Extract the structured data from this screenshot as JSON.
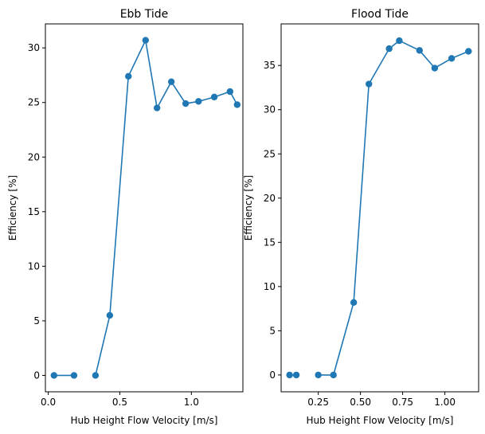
{
  "chart_data": [
    {
      "type": "line",
      "title": "Ebb Tide",
      "xlabel": "Hub Height Flow Velocity [m/s]",
      "ylabel": "Efficiency [%]",
      "xlim": [
        -0.02,
        1.36
      ],
      "ylim": [
        -1.5,
        32.2
      ],
      "xticks": [
        "0.0",
        "0.5",
        "1.0"
      ],
      "xtick_values": [
        0.0,
        0.5,
        1.0
      ],
      "yticks": [
        "0",
        "5",
        "10",
        "15",
        "20",
        "25",
        "30"
      ],
      "ytick_values": [
        0,
        5,
        10,
        15,
        20,
        25,
        30
      ],
      "color": "#1f77b4",
      "markers": true,
      "grid": false,
      "series": [
        {
          "x": [
            0.04,
            0.18,
            0.33,
            0.43,
            0.56,
            0.68,
            0.76,
            0.86,
            0.96,
            1.05,
            1.16,
            1.27,
            1.32
          ],
          "y": [
            0,
            0,
            0,
            5.5,
            27.4,
            30.7,
            24.5,
            26.9,
            24.9,
            25.1,
            25.5,
            26.0,
            24.8
          ],
          "segments": [
            [
              0,
              1
            ],
            [
              2,
              12
            ]
          ]
        }
      ]
    },
    {
      "type": "line",
      "title": "Flood Tide",
      "xlabel": "Hub Height Flow Velocity [m/s]",
      "ylabel": "Efficiency [%]",
      "xlim": [
        0.03,
        1.2
      ],
      "ylim": [
        -1.9,
        39.7
      ],
      "xticks": [
        "0.25",
        "0.50",
        "0.75",
        "1.00"
      ],
      "xtick_values": [
        0.25,
        0.5,
        0.75,
        1.0
      ],
      "yticks": [
        "0",
        "5",
        "10",
        "15",
        "20",
        "25",
        "30",
        "35"
      ],
      "ytick_values": [
        0,
        5,
        10,
        15,
        20,
        25,
        30,
        35
      ],
      "color": "#1f77b4",
      "markers": true,
      "grid": false,
      "series": [
        {
          "x": [
            0.08,
            0.12,
            0.25,
            0.34,
            0.46,
            0.55,
            0.67,
            0.73,
            0.85,
            0.94,
            1.04,
            1.14
          ],
          "y": [
            0,
            0,
            0,
            0,
            8.2,
            32.9,
            36.9,
            37.8,
            36.7,
            34.7,
            35.8,
            36.6
          ],
          "segments": [
            [
              0,
              1
            ],
            [
              2,
              11
            ]
          ]
        }
      ]
    }
  ]
}
